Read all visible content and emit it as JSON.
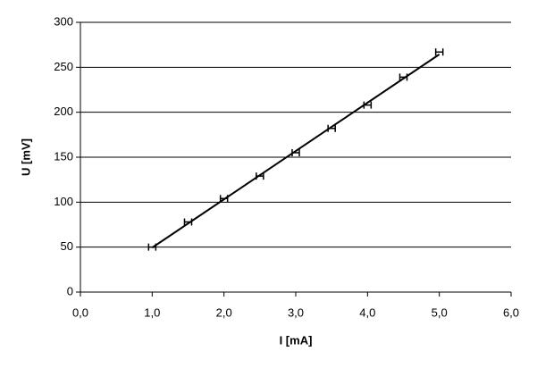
{
  "chart_data": {
    "type": "scatter",
    "x_label": "I [mA]",
    "y_label": "U [mV]",
    "x": [
      1.0,
      1.5,
      2.0,
      2.5,
      3.0,
      3.5,
      4.0,
      4.5,
      5.0
    ],
    "values": [
      50,
      78,
      104,
      129,
      155,
      182,
      208,
      239,
      267
    ],
    "x_errors": [
      0.05,
      0.05,
      0.05,
      0.05,
      0.05,
      0.05,
      0.05,
      0.05,
      0.05
    ],
    "color": "#000000",
    "trendline": true,
    "xlim": [
      0,
      6
    ],
    "xticks": [
      {
        "value": 0,
        "label": "0,0"
      },
      {
        "value": 1,
        "label": "1,0"
      },
      {
        "value": 2,
        "label": "2,0"
      },
      {
        "value": 3,
        "label": "3,0"
      },
      {
        "value": 4,
        "label": "4,0"
      },
      {
        "value": 5,
        "label": "5,0"
      },
      {
        "value": 6,
        "label": "6,0"
      }
    ],
    "ylim": [
      0,
      300
    ],
    "yticks": [
      0,
      50,
      100,
      150,
      200,
      250,
      300
    ],
    "grid": true
  }
}
